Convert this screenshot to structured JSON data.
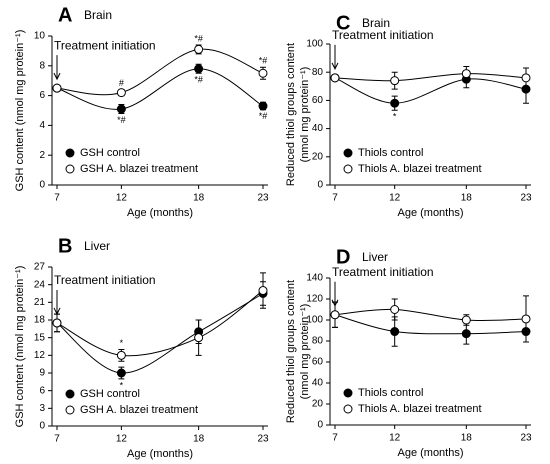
{
  "chart_data": [
    {
      "type": "line",
      "panel_label": "A",
      "title": "Brain",
      "annotation": "Treatment initiation",
      "xlabel": "Age (months)",
      "ylabel": [
        "GSH content  (nmol mg protein⁻¹)"
      ],
      "x": [
        7,
        12,
        18,
        23
      ],
      "xlim": [
        7,
        23
      ],
      "xticks": [
        7,
        12,
        18,
        23
      ],
      "ylim": [
        0,
        10
      ],
      "yticks": [
        0,
        2,
        4,
        6,
        8,
        10
      ],
      "legend": "lower left",
      "series": [
        {
          "name": "GSH control",
          "color": "#000000",
          "values": [
            6.5,
            5.1,
            7.8,
            5.3
          ],
          "errors": [
            0.15,
            0.3,
            0.3,
            0.25
          ],
          "annotations_above": [
            null,
            null,
            null,
            null
          ],
          "annotations_below": [
            null,
            "*#",
            "*#",
            "*#"
          ]
        },
        {
          "name": "GSH A. blazei treatment",
          "color": "#ffffff",
          "values": [
            6.5,
            6.2,
            9.1,
            7.5
          ],
          "errors": [
            0.15,
            0.2,
            0.3,
            0.4
          ],
          "annotations_above": [
            null,
            "#",
            "*#",
            "*#"
          ],
          "annotations_below": [
            null,
            null,
            null,
            null
          ]
        }
      ]
    },
    {
      "type": "line",
      "panel_label": "B",
      "title": "Liver",
      "annotation": "Treatment initiation",
      "xlabel": "Age (months)",
      "ylabel": [
        "GSH content  (nmol mg protein⁻¹)"
      ],
      "x": [
        7,
        12,
        18,
        23
      ],
      "xlim": [
        7,
        23
      ],
      "xticks": [
        7,
        12,
        18,
        23
      ],
      "ylim": [
        0,
        27
      ],
      "yticks": [
        0,
        3,
        6,
        9,
        12,
        15,
        18,
        21,
        24,
        27
      ],
      "legend": "lower left",
      "series": [
        {
          "name": "GSH control",
          "color": "#000000",
          "values": [
            17.5,
            9,
            16,
            22.5
          ],
          "errors": [
            1.5,
            1,
            2,
            2
          ],
          "annotations_above": [
            null,
            null,
            null,
            null
          ],
          "annotations_below": [
            null,
            "*",
            null,
            null
          ]
        },
        {
          "name": "GSH A. blazei treatment",
          "color": "#ffffff",
          "values": [
            17.5,
            12,
            15,
            23
          ],
          "errors": [
            1.5,
            1,
            3,
            3
          ],
          "annotations_above": [
            null,
            "*",
            null,
            null
          ],
          "annotations_below": [
            null,
            null,
            null,
            null
          ]
        }
      ]
    },
    {
      "type": "line",
      "panel_label": "C",
      "title": "Brain",
      "annotation": "Treatment initiation",
      "xlabel": "Age (months)",
      "ylabel": [
        "Reduced thiol groups content",
        "(nmol mg protein⁻¹)"
      ],
      "x": [
        7,
        12,
        18,
        23
      ],
      "xlim": [
        7,
        23
      ],
      "xticks": [
        7,
        12,
        18,
        23
      ],
      "ylim": [
        0,
        100
      ],
      "yticks": [
        0,
        20,
        40,
        60,
        80,
        100
      ],
      "legend": "lower left",
      "series": [
        {
          "name": "Thiols control",
          "color": "#000000",
          "values": [
            76,
            58,
            75,
            68
          ],
          "errors": [
            2,
            5,
            6,
            10
          ],
          "annotations_above": [
            null,
            null,
            null,
            null
          ],
          "annotations_below": [
            null,
            "*",
            null,
            null
          ]
        },
        {
          "name": "Thiols A. blazei treatment",
          "color": "#ffffff",
          "values": [
            76,
            74,
            79,
            76
          ],
          "errors": [
            2,
            6,
            5,
            7
          ],
          "annotations_above": [
            null,
            null,
            null,
            null
          ],
          "annotations_below": [
            null,
            null,
            null,
            null
          ]
        }
      ]
    },
    {
      "type": "line",
      "panel_label": "D",
      "title": "Liver",
      "annotation": "Treatment initiation",
      "xlabel": "Age (months)",
      "ylabel": [
        "Reduced thiol groups content",
        "(nmol mg protein⁻¹)"
      ],
      "x": [
        7,
        12,
        18,
        23
      ],
      "xlim": [
        7,
        23
      ],
      "xticks": [
        7,
        12,
        18,
        23
      ],
      "ylim": [
        0,
        140
      ],
      "yticks": [
        0,
        20,
        40,
        60,
        80,
        100,
        120,
        140
      ],
      "legend": "lower left",
      "series": [
        {
          "name": "Thiols control",
          "color": "#000000",
          "values": [
            105,
            89,
            87,
            89
          ],
          "errors": [
            12,
            14,
            10,
            10
          ],
          "annotations_above": [
            null,
            null,
            null,
            null
          ],
          "annotations_below": [
            null,
            null,
            null,
            null
          ]
        },
        {
          "name": "Thiols A. blazei treatment",
          "color": "#ffffff",
          "values": [
            105,
            110,
            100,
            101
          ],
          "errors": [
            12,
            10,
            5,
            22
          ],
          "annotations_above": [
            null,
            null,
            null,
            null
          ],
          "annotations_below": [
            null,
            null,
            null,
            null
          ]
        }
      ]
    }
  ]
}
